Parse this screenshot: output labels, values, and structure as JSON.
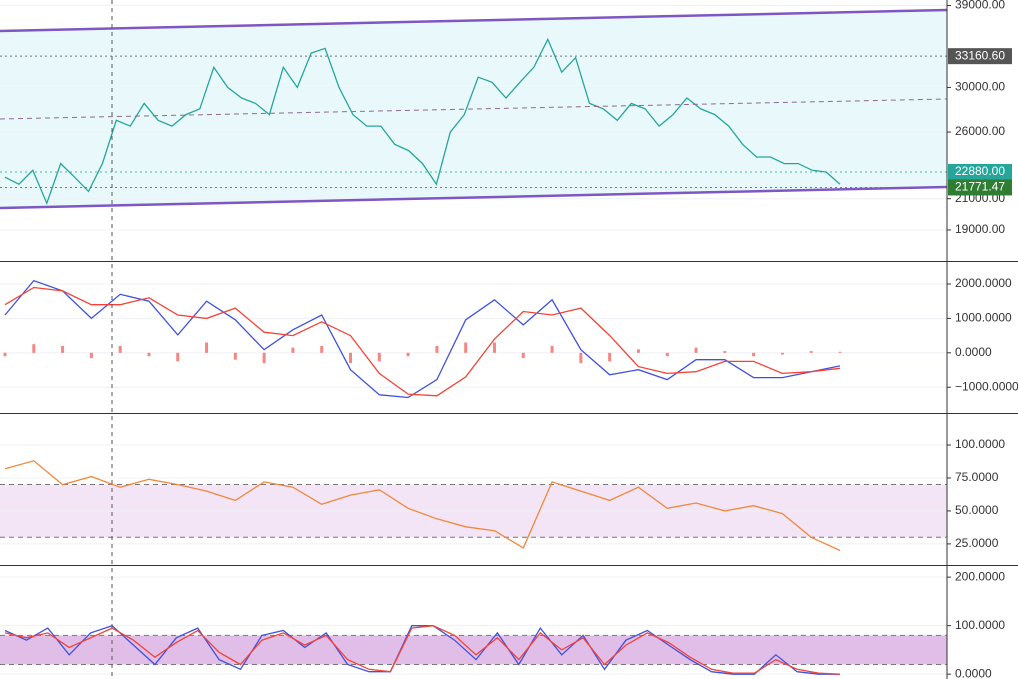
{
  "chart_data": [
    {
      "type": "line",
      "log": true,
      "ylim": [
        17200,
        39700
      ],
      "yticks": [
        {
          "value": 39000,
          "label": "39000.00"
        },
        {
          "value": 30000,
          "label": "30000.00"
        },
        {
          "value": 26000,
          "label": "26000.00"
        },
        {
          "value": 21000,
          "label": "21000.00"
        },
        {
          "value": 19000,
          "label": "19000.00"
        }
      ],
      "grid": true,
      "series": [
        {
          "color": "#26a69a",
          "values": [
            22500,
            22000,
            23000,
            20700,
            23500,
            22500,
            21500,
            23500,
            27000,
            26500,
            28500,
            27000,
            26500,
            27500,
            28000,
            32000,
            30000,
            29000,
            28500,
            27500,
            32000,
            30000,
            33500,
            34000,
            30000,
            27500,
            26500,
            26500,
            25000,
            24500,
            23500,
            22000,
            26000,
            27500,
            31000,
            30500,
            29000,
            30500,
            32000,
            35000,
            31500,
            33000,
            28500,
            28000,
            27000,
            28500,
            28000,
            26500,
            27500,
            29000,
            28000,
            27500,
            26500,
            25000,
            24000,
            24000,
            23500,
            23500,
            23000,
            22880,
            22000
          ]
        }
      ],
      "price_labels": [
        {
          "value": 33160.6,
          "label": "33160.60",
          "color": "#555555"
        },
        {
          "value": 22880,
          "label": "22880.00",
          "color": "#26a69a"
        },
        {
          "value": 21771.47,
          "label": "21771.47",
          "color": "#2e7d32"
        }
      ]
    },
    {
      "type": "line",
      "ylim": [
        -1750,
        2640
      ],
      "yticks": [
        {
          "value": 2000,
          "label": "2000.0000"
        },
        {
          "value": 1000,
          "label": "1000.0000"
        },
        {
          "value": 0,
          "label": "0.0000"
        },
        {
          "value": -1000,
          "label": "−1000.0000"
        }
      ],
      "grid": true,
      "histogram": {
        "color": "#ef5350",
        "values": [
          -100,
          250,
          200,
          -150,
          200,
          -100,
          -250,
          300,
          -200,
          -300,
          150,
          200,
          -300,
          -250,
          -100,
          200,
          300,
          300,
          -150,
          200,
          -300,
          -250,
          100,
          -100,
          150,
          50,
          -100,
          -50,
          50,
          30
        ]
      },
      "series": [
        {
          "color": "#3f51e0",
          "values": [
            1100,
            2100,
            1800,
            1000,
            1700,
            1500,
            520,
            1500,
            960,
            90,
            670,
            1100,
            -490,
            -1220,
            -1300,
            -780,
            960,
            1540,
            810,
            1540,
            90,
            -640,
            -490,
            -780,
            -200,
            -200,
            -720,
            -720,
            -550,
            -380
          ]
        },
        {
          "color": "#f44336",
          "values": [
            1400,
            1900,
            1800,
            1400,
            1400,
            1600,
            1100,
            1000,
            1300,
            600,
            500,
            900,
            500,
            -600,
            -1200,
            -1250,
            -700,
            400,
            1200,
            1100,
            1300,
            500,
            -400,
            -600,
            -550,
            -250,
            -250,
            -600,
            -550,
            -450
          ]
        }
      ]
    },
    {
      "type": "line",
      "ylim": [
        9,
        123.5
      ],
      "yticks": [
        {
          "value": 100,
          "label": "100.0000"
        },
        {
          "value": 75,
          "label": "75.0000"
        },
        {
          "value": 50,
          "label": "50.0000"
        },
        {
          "value": 25,
          "label": "25.0000"
        }
      ],
      "grid": true,
      "band": [
        30,
        70
      ],
      "band_color": "#f3e5f5",
      "series": [
        {
          "color": "#f0883e",
          "values": [
            82,
            88,
            70,
            76,
            68,
            74,
            70,
            65,
            58,
            72,
            68,
            55,
            62,
            66,
            52,
            44,
            38,
            35,
            22,
            72,
            65,
            58,
            68,
            52,
            56,
            50,
            54,
            48,
            30,
            20
          ]
        }
      ]
    },
    {
      "type": "line",
      "ylim": [
        -10,
        223
      ],
      "yticks": [
        {
          "value": 200,
          "label": "200.0000"
        },
        {
          "value": 100,
          "label": "100.0000"
        },
        {
          "value": 0,
          "label": "0.0000"
        }
      ],
      "grid": true,
      "band": [
        20,
        80
      ],
      "band_color": "#e1bee7",
      "series": [
        {
          "color": "#3f51e0",
          "values": [
            90,
            70,
            95,
            40,
            85,
            100,
            60,
            20,
            75,
            95,
            30,
            10,
            80,
            90,
            55,
            85,
            20,
            5,
            5,
            100,
            100,
            70,
            30,
            85,
            20,
            95,
            40,
            80,
            10,
            70,
            90,
            60,
            30,
            5,
            0,
            0,
            40,
            5,
            0,
            0
          ]
        },
        {
          "color": "#f44336",
          "values": [
            85,
            75,
            85,
            55,
            75,
            95,
            70,
            35,
            65,
            90,
            45,
            20,
            70,
            85,
            60,
            80,
            30,
            10,
            5,
            95,
            100,
            80,
            40,
            75,
            30,
            85,
            50,
            75,
            20,
            60,
            85,
            65,
            35,
            10,
            2,
            2,
            30,
            10,
            2,
            0
          ]
        }
      ]
    }
  ]
}
